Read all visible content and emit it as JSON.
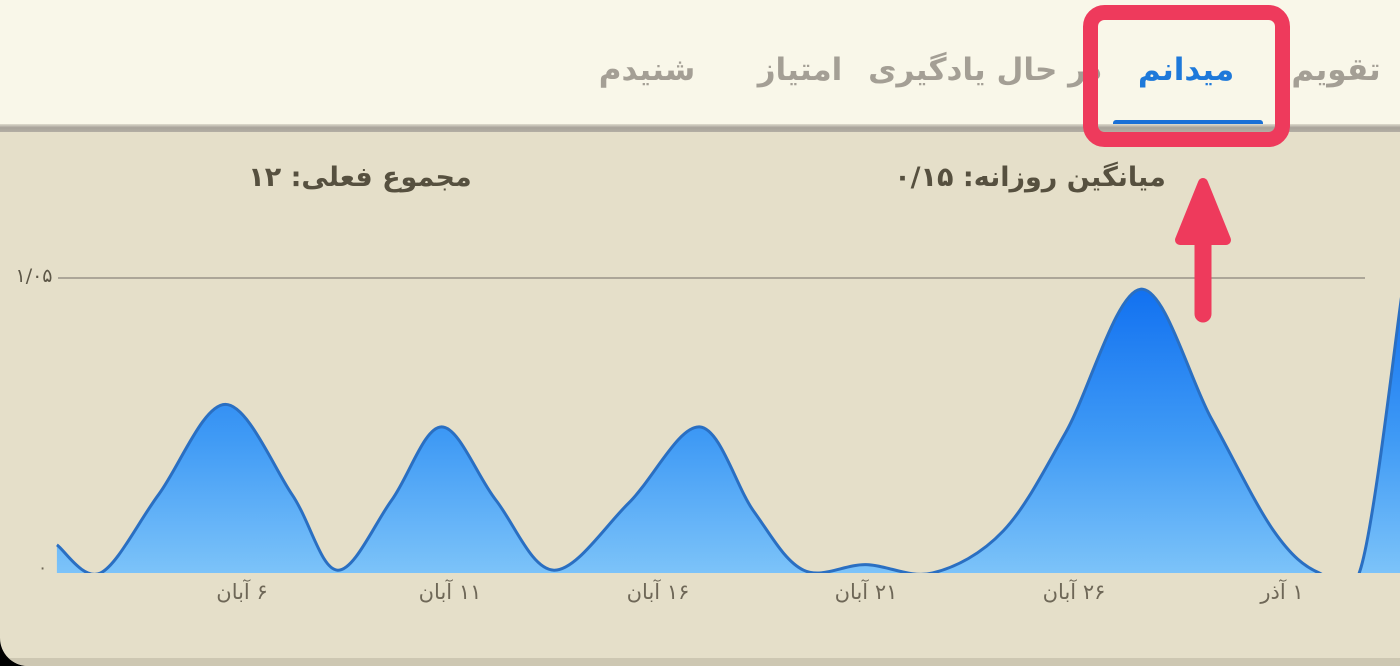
{
  "tabs": {
    "items": [
      {
        "label": "تقویم",
        "active": false
      },
      {
        "label": "میدانم",
        "active": true
      },
      {
        "label": "در حال یادگیری",
        "active": false
      },
      {
        "label": "امتیاز",
        "active": false
      },
      {
        "label": "شنیدم",
        "active": false
      }
    ],
    "active_underline_color": "#1a70d6"
  },
  "stats": {
    "daily_average": "میانگین روزانه: ۰/۱۵",
    "current_total": "مجموع فعلی: ۱۲"
  },
  "annotation": {
    "color": "#ee3a5c",
    "target_tab": "میدانم"
  },
  "chart_data": {
    "type": "area",
    "title": "",
    "xlabel": "",
    "ylabel": "",
    "ylim": [
      0,
      1.05
    ],
    "y_top_label": "۱/۰۵",
    "y_zero_label": "۰",
    "grid": "single horizontal line at 1.05",
    "legend": "none",
    "x_ticks": [
      "۶ آبان",
      "۱۱ آبان",
      "۱۶ آبان",
      "۲۱ آبان",
      "۲۶ آبان",
      "۱ آذر"
    ],
    "x_tick_days": [
      6,
      11,
      16,
      21,
      26,
      31
    ],
    "series": [
      {
        "name": "daily-activity",
        "points_day_value": [
          [
            1.55,
            0.1
          ],
          [
            2.6,
            0.0
          ],
          [
            4.0,
            0.28
          ],
          [
            5.6,
            0.6
          ],
          [
            7.2,
            0.28
          ],
          [
            8.3,
            0.01
          ],
          [
            9.6,
            0.26
          ],
          [
            10.8,
            0.52
          ],
          [
            12.1,
            0.26
          ],
          [
            13.5,
            0.01
          ],
          [
            15.3,
            0.25
          ],
          [
            17.0,
            0.52
          ],
          [
            18.3,
            0.22
          ],
          [
            19.5,
            0.01
          ],
          [
            21.0,
            0.03
          ],
          [
            22.6,
            0.0
          ],
          [
            24.3,
            0.15
          ],
          [
            25.8,
            0.5
          ],
          [
            27.6,
            1.01
          ],
          [
            29.3,
            0.55
          ],
          [
            30.8,
            0.15
          ],
          [
            31.9,
            0.0
          ],
          [
            32.9,
            0.02
          ],
          [
            33.9,
            1.01
          ]
        ]
      }
    ],
    "colors": {
      "fill_top": "#0c6cf0",
      "fill_mid": "#3f9af5",
      "fill_bottom": "#7cc3f9",
      "stroke": "#2a6fc2",
      "gridline": "#a29c8f"
    }
  }
}
